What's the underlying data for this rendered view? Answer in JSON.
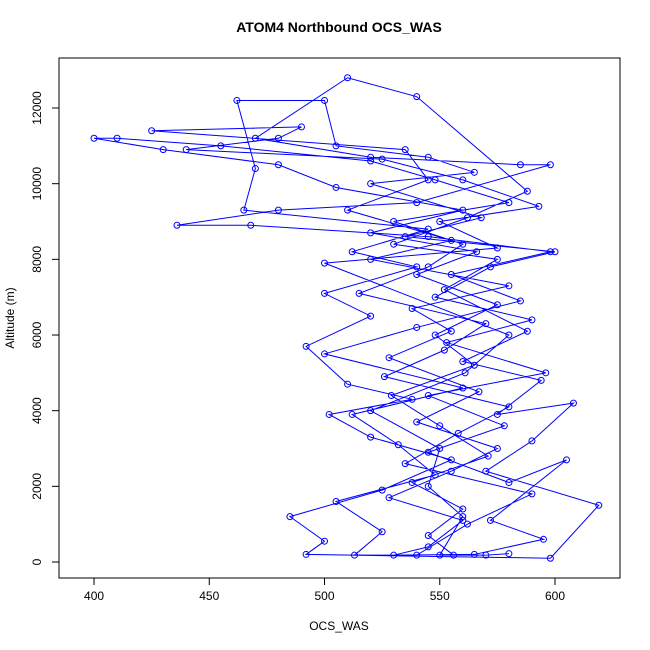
{
  "chart_data": {
    "type": "line",
    "markers": true,
    "title": "ATOM4 Northbound OCS_WAS",
    "x_label": "OCS_WAS",
    "y_label": "Altitude (m)",
    "color": "#0000ff",
    "xlim": [
      384.8,
      628.2
    ],
    "ylim": [
      -423,
      13322
    ],
    "xticks": [
      400,
      450,
      500,
      550,
      600
    ],
    "yticks": [
      0,
      2000,
      4000,
      6000,
      8000,
      10000,
      12000
    ],
    "x": [
      556,
      545,
      560,
      538,
      571,
      550,
      529,
      565,
      548,
      575,
      540,
      566,
      520,
      560,
      505,
      480,
      430,
      400,
      410,
      455,
      520,
      548,
      580,
      530,
      560,
      545,
      515,
      570,
      552,
      526,
      580,
      558,
      535,
      590,
      562,
      540,
      513,
      525,
      505,
      548,
      532,
      512,
      560,
      500,
      540,
      585,
      555,
      598,
      545,
      468,
      436,
      480,
      540,
      598,
      585,
      520,
      470,
      510,
      540,
      588,
      562,
      530,
      575,
      552,
      588,
      560,
      594,
      575,
      608,
      590,
      570,
      619,
      598,
      492,
      500,
      485,
      525,
      555,
      520,
      502,
      538,
      510,
      492,
      520,
      500,
      540,
      512,
      545,
      465,
      470,
      462,
      500,
      505,
      545,
      565,
      520,
      568,
      535,
      600,
      572,
      548,
      590,
      553,
      596,
      545,
      578,
      545,
      580,
      605,
      572,
      595,
      565,
      530,
      545,
      560,
      528,
      555,
      575,
      540,
      567,
      528,
      555,
      538,
      580,
      520,
      555,
      510,
      545,
      535,
      425,
      490,
      480,
      440,
      525,
      560,
      593,
      550,
      575,
      500,
      580,
      561,
      520,
      550,
      545,
      560,
      550,
      570,
      580
    ],
    "values": [
      180,
      700,
      1400,
      2100,
      2800,
      3600,
      4400,
      5200,
      6000,
      6800,
      7600,
      8200,
      8700,
      9300,
      9900,
      10500,
      10900,
      11200,
      11200,
      11000,
      10600,
      10100,
      9500,
      9000,
      8400,
      7800,
      7100,
      6300,
      5600,
      4900,
      4100,
      3400,
      2600,
      1800,
      1000,
      180,
      180,
      800,
      1600,
      2300,
      3100,
      3900,
      4600,
      5500,
      6200,
      6900,
      7600,
      8200,
      8600,
      8900,
      8900,
      9300,
      9500,
      10500,
      10500,
      10700,
      11200,
      12800,
      12300,
      9800,
      9100,
      8400,
      8000,
      7200,
      6100,
      5300,
      4800,
      3900,
      4200,
      3200,
      2400,
      1500,
      100,
      200,
      550,
      1200,
      1900,
      2700,
      3300,
      3900,
      4300,
      4700,
      5700,
      6500,
      7100,
      7800,
      8200,
      8800,
      9300,
      10400,
      12200,
      12200,
      11000,
      10700,
      10300,
      10000,
      9100,
      8600,
      8200,
      7800,
      7000,
      6400,
      5800,
      5000,
      4400,
      3600,
      2900,
      2100,
      2700,
      1100,
      600,
      200,
      180,
      400,
      1100,
      1700,
      2400,
      3000,
      3700,
      4500,
      5400,
      6100,
      6700,
      7300,
      8000,
      8500,
      9300,
      10100,
      10900,
      11400,
      11500,
      11200,
      10900,
      10650,
      10100,
      9400,
      9000,
      8300,
      7900,
      6000,
      5000,
      4000,
      3000,
      2000,
      1200,
      180,
      180,
      220
    ]
  }
}
